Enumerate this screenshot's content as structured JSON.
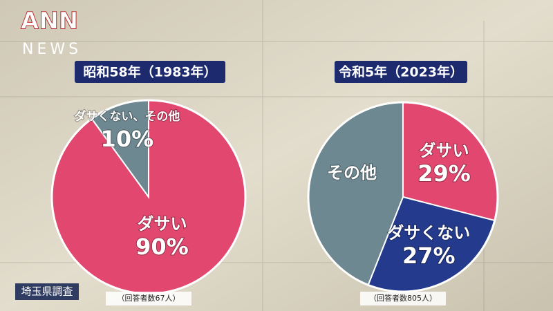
{
  "logo": {
    "name": "ANN",
    "sub": "NEWS"
  },
  "source": "埼玉県調査",
  "chart_data": [
    {
      "type": "pie",
      "title": "昭和58年（1983年）",
      "categories": [
        "ダサい",
        "ダサくない、その他"
      ],
      "values": [
        90,
        10
      ],
      "value_labels": [
        "90%",
        "10%"
      ],
      "colors": [
        "#e2476f",
        "#6e8891"
      ],
      "note": "（回答者数67人）"
    },
    {
      "type": "pie",
      "title": "令和5年（2023年）",
      "categories": [
        "ダサい",
        "ダサくない",
        "その他"
      ],
      "values": [
        29,
        27,
        44
      ],
      "value_labels": [
        "29%",
        "27%",
        null
      ],
      "colors": [
        "#e2476f",
        "#243a8c",
        "#6e8891"
      ],
      "note": "（回答者数805人）"
    }
  ]
}
